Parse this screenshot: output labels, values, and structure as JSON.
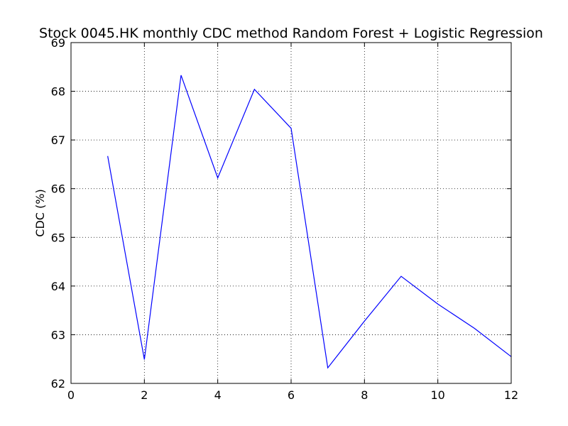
{
  "chart_data": {
    "type": "line",
    "title": "Stock 0045.HK monthly CDC method Random Forest + Logistic Regression",
    "xlabel": "",
    "ylabel": "CDC (%)",
    "xlim": [
      0,
      12
    ],
    "ylim": [
      62,
      69
    ],
    "x_ticks": [
      0,
      2,
      4,
      6,
      8,
      10,
      12
    ],
    "y_ticks": [
      62,
      63,
      64,
      65,
      66,
      67,
      68,
      69
    ],
    "grid": true,
    "line_color": "#0000ff",
    "series": [
      {
        "x": [
          1,
          2,
          3,
          4,
          5,
          6,
          7,
          8,
          9,
          10,
          11,
          12
        ],
        "values": [
          66.67,
          62.49,
          68.33,
          66.22,
          68.04,
          67.24,
          62.32,
          63.28,
          64.2,
          63.63,
          63.13,
          62.55
        ]
      }
    ]
  }
}
